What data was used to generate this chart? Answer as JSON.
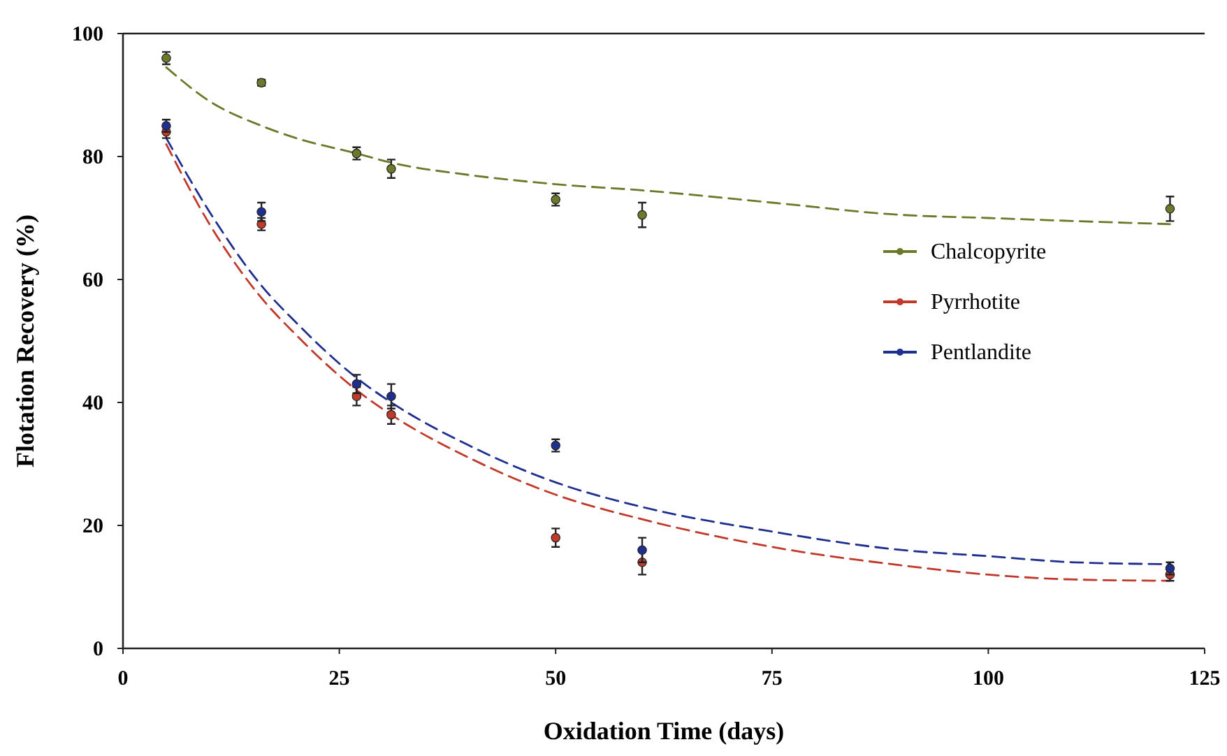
{
  "chart_data": {
    "type": "scatter",
    "xlabel": "Oxidation Time (days)",
    "ylabel": "Flotation Recovery (%)",
    "xlim": [
      0,
      125
    ],
    "ylim": [
      0,
      100
    ],
    "xticks": [
      0,
      25,
      50,
      75,
      100,
      125
    ],
    "yticks": [
      0,
      20,
      40,
      60,
      80,
      100
    ],
    "grid": false,
    "legend": "right",
    "marker": "circle",
    "series": [
      {
        "name": "Chalcopyrite",
        "color": "#6b7a2a",
        "x": [
          5,
          16,
          27,
          31,
          50,
          60,
          121
        ],
        "values": [
          96,
          92,
          80.5,
          78,
          73,
          70.5,
          71.5
        ],
        "errors": [
          1,
          0.5,
          1,
          1.5,
          1,
          2,
          2
        ]
      },
      {
        "name": "Pyrrhotite",
        "color": "#c0392b",
        "x": [
          5,
          16,
          27,
          31,
          50,
          60,
          121
        ],
        "values": [
          84,
          69,
          41,
          38,
          18,
          14,
          12
        ],
        "errors": [
          1,
          1,
          1.5,
          1.5,
          1.5,
          2,
          1
        ]
      },
      {
        "name": "Pentlandite",
        "color": "#1f2f8f",
        "x": [
          5,
          16,
          27,
          31,
          50,
          60,
          121
        ],
        "values": [
          85,
          71,
          43,
          41,
          33,
          16,
          13
        ],
        "errors": [
          1,
          1.5,
          1.5,
          2,
          1,
          2,
          1
        ]
      },
      {
        "type": "line",
        "color": "#6b7a2a",
        "line_style": "dashed",
        "marker": "none",
        "x": [
          5,
          10,
          16,
          20,
          27,
          31,
          40,
          50,
          60,
          75,
          90,
          100,
          110,
          121
        ],
        "values": [
          94.5,
          89,
          85,
          83,
          80.5,
          79,
          77,
          75.5,
          74.5,
          72.5,
          70.5,
          70,
          69.5,
          69
        ]
      },
      {
        "type": "line",
        "color": "#c0392b",
        "line_style": "dashed",
        "marker": "none",
        "x": [
          5,
          10,
          16,
          20,
          27,
          31,
          40,
          50,
          60,
          75,
          90,
          100,
          110,
          121
        ],
        "values": [
          82,
          69,
          57,
          51,
          42,
          38,
          31,
          25,
          21,
          16.5,
          13.5,
          12,
          11.2,
          11
        ]
      },
      {
        "type": "line",
        "color": "#1f2f8f",
        "line_style": "dashed",
        "marker": "none",
        "x": [
          5,
          10,
          16,
          20,
          27,
          31,
          40,
          50,
          60,
          75,
          90,
          100,
          110,
          121
        ],
        "values": [
          83,
          71,
          59,
          53,
          44,
          40,
          33,
          27,
          23,
          19,
          16,
          15,
          14,
          13.7
        ]
      }
    ]
  }
}
